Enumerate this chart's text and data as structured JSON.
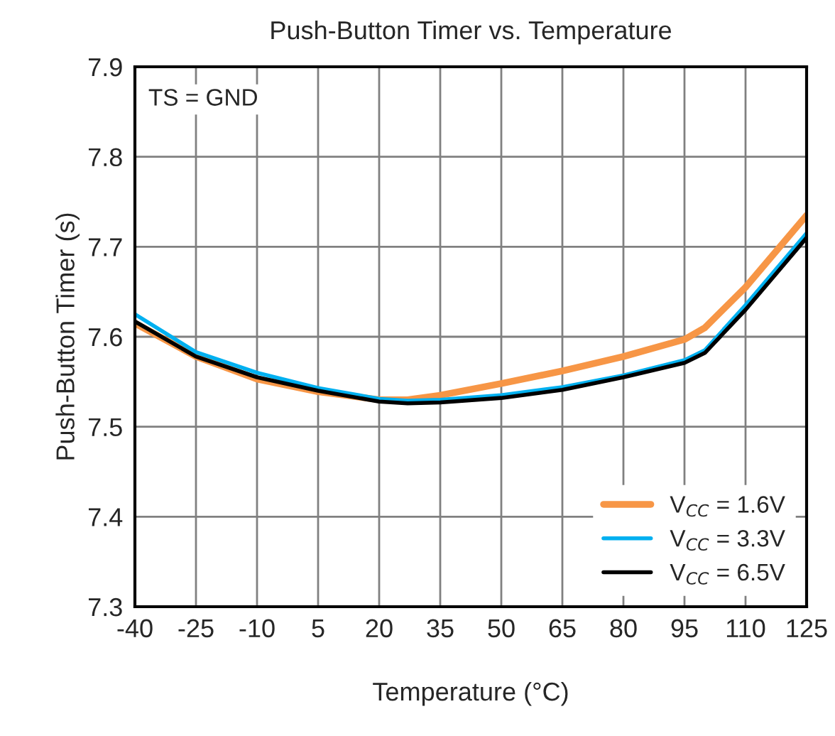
{
  "chart_data": {
    "type": "line",
    "title": "Push-Button Timer vs. Temperature",
    "xlabel": "Temperature (°C)",
    "ylabel": "Push-Button Timer (s)",
    "x": [
      -40,
      -25,
      -10,
      5,
      20,
      27,
      35,
      50,
      65,
      80,
      95,
      100,
      110,
      125
    ],
    "series": [
      {
        "name": "V$_{CC}$ = 1.6V",
        "color": "#f79646",
        "values": [
          7.615,
          7.578,
          7.553,
          7.539,
          7.53,
          7.53,
          7.535,
          7.548,
          7.562,
          7.578,
          7.597,
          7.61,
          7.655,
          7.735
        ]
      },
      {
        "name": "V$_{CC}$ = 3.3V",
        "color": "#00b0f0",
        "values": [
          7.625,
          7.583,
          7.56,
          7.543,
          7.531,
          7.529,
          7.53,
          7.535,
          7.544,
          7.557,
          7.574,
          7.585,
          7.635,
          7.715
        ]
      },
      {
        "name": "V$_{CC}$ = 6.5V",
        "color": "#000000",
        "values": [
          7.617,
          7.578,
          7.555,
          7.54,
          7.528,
          7.526,
          7.527,
          7.532,
          7.541,
          7.555,
          7.571,
          7.582,
          7.63,
          7.71
        ]
      }
    ],
    "annotations": [
      "TS = GND"
    ],
    "xlim": [
      -40,
      125
    ],
    "xticks": [
      -40,
      -25,
      -10,
      5,
      20,
      35,
      50,
      65,
      80,
      95,
      110,
      125
    ],
    "ylim": [
      7.3,
      7.9
    ],
    "yticks": [
      {
        "value": 7.3,
        "label": "7.3"
      },
      {
        "value": 7.4,
        "label": "7.4"
      },
      {
        "value": 7.5,
        "label": "7.5"
      },
      {
        "value": 7.6,
        "label": "7.6"
      },
      {
        "value": 7.7,
        "label": "7.7"
      },
      {
        "value": 7.8,
        "label": "7.8"
      },
      {
        "value": 7.9,
        "label": "7.9"
      }
    ],
    "grid": true,
    "legend": "bottom right",
    "line_style": "solid"
  }
}
